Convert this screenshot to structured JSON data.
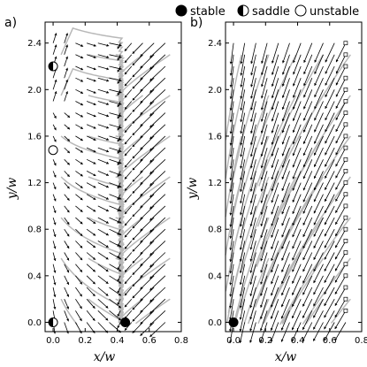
{
  "legend": {
    "entries": [
      {
        "key": "stable",
        "label": "stable",
        "marker": "filled-circle",
        "color": "#000000"
      },
      {
        "key": "saddle",
        "label": "saddle",
        "marker": "half-filled-circle",
        "color": "#000000"
      },
      {
        "key": "unstable",
        "label": "unstable",
        "marker": "open-circle",
        "color": "#000000"
      }
    ]
  },
  "chart_data": [
    {
      "panel": "a)",
      "type": "scatter",
      "subtype": "quiver-streamplot",
      "xlabel": "x/w",
      "ylabel": "y/w",
      "xlim": [
        -0.05,
        0.8
      ],
      "ylim": [
        -0.08,
        2.58
      ],
      "xticks": [
        "0.0",
        "0.2",
        "0.4",
        "0.6",
        "0.8"
      ],
      "yticks": [
        "0.0",
        "0.4",
        "0.8",
        "1.2",
        "1.6",
        "2.0",
        "2.4"
      ],
      "grid": false,
      "colors": {
        "arrows": "#000000",
        "streamlines": "#b8b8b8"
      },
      "fixed_points": [
        {
          "type": "saddle",
          "x": 0.0,
          "y": 2.2
        },
        {
          "type": "unstable",
          "x": 0.0,
          "y": 1.48
        },
        {
          "type": "saddle",
          "x": 0.0,
          "y": 0.0
        },
        {
          "type": "stable",
          "x": 0.45,
          "y": 0.0
        }
      ]
    },
    {
      "panel": "b)",
      "type": "scatter",
      "subtype": "quiver-streamplot",
      "xlabel": "x/w",
      "ylabel": "y/w",
      "xlim": [
        -0.05,
        0.8
      ],
      "ylim": [
        -0.08,
        2.58
      ],
      "xticks": [
        "0.0",
        "0.2",
        "0.4",
        "0.6",
        "0.8"
      ],
      "yticks": [
        "0.0",
        "0.4",
        "0.8",
        "1.2",
        "1.6",
        "2.0",
        "2.4"
      ],
      "grid": false,
      "colors": {
        "arrows": "#000000",
        "streamlines": "#b8b8b8"
      },
      "fixed_points": [
        {
          "type": "stable",
          "x": 0.0,
          "y": 0.0
        }
      ],
      "boundary_markers": {
        "marker": "open-square",
        "x": 0.7
      }
    }
  ]
}
